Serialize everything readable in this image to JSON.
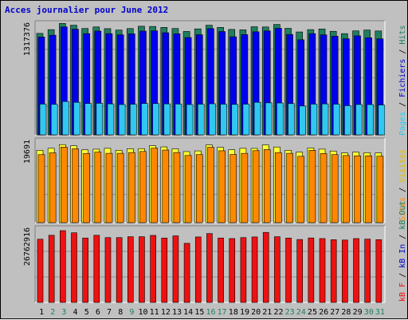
{
  "chart_data": {
    "type": "bar",
    "title": "Acces journalier pour June 2012",
    "colors": {
      "hits": "#1f7f5f",
      "files": "#0000ee",
      "pages": "#30c8f0",
      "visits": "#ffff33",
      "sites": "#ff8800",
      "kbytes": "#ee1111",
      "label_blue": "#0000cc",
      "label_green": "#1f7f5f",
      "label_red": "#ee1111",
      "label_orange": "#ff8800",
      "label_yellow": "#e0c000",
      "label_cyan": "#30c8f0",
      "label_black": "#000000"
    },
    "categories": [
      "1",
      "2",
      "3",
      "4",
      "5",
      "6",
      "7",
      "8",
      "9",
      "10",
      "11",
      "12",
      "13",
      "14",
      "15",
      "16",
      "17",
      "18",
      "19",
      "20",
      "21",
      "22",
      "23",
      "24",
      "25",
      "26",
      "27",
      "28",
      "29",
      "30",
      "31"
    ],
    "weekend_days": [
      "2",
      "3",
      "9",
      "16",
      "17",
      "23",
      "24",
      "30",
      "31"
    ],
    "top_panel": {
      "ymax_label": "1317376",
      "ymax": 1317376,
      "series": [
        {
          "name": "Hits",
          "color_key": "hits",
          "values": [
            1222700,
            1267900,
            1342600,
            1321500,
            1281500,
            1300300,
            1280100,
            1262900,
            1281000,
            1308800,
            1306200,
            1295100,
            1281500,
            1246300,
            1276900,
            1321500,
            1295100,
            1270500,
            1265300,
            1302900,
            1300300,
            1330700,
            1283700,
            1240000,
            1267900,
            1275900,
            1247900,
            1220000,
            1253000,
            1263000,
            1252000
          ]
        },
        {
          "name": "Fichiers",
          "color_key": "files",
          "values": [
            1178500,
            1200700,
            1300300,
            1273100,
            1219700,
            1250700,
            1219700,
            1205400,
            1217500,
            1250700,
            1254000,
            1230800,
            1217500,
            1173000,
            1206700,
            1280300,
            1245400,
            1182000,
            1207700,
            1241800,
            1253000,
            1283700,
            1209500,
            1145600,
            1219700,
            1205400,
            1188400,
            1158100,
            1193600,
            1170000,
            1157000
          ]
        },
        {
          "name": "Pages",
          "color_key": "pages",
          "values": [
            370900,
            367700,
            402400,
            392500,
            378200,
            380400,
            373700,
            365600,
            369400,
            378200,
            377100,
            373700,
            371700,
            365600,
            370000,
            374800,
            370000,
            367100,
            370000,
            392500,
            385800,
            384200,
            376800,
            348000,
            370900,
            373700,
            370000,
            351600,
            366000,
            365000,
            360000
          ]
        }
      ]
    },
    "middle_panel": {
      "ymax_label": "19691",
      "ymax": 19691,
      "series": [
        {
          "name": "Visites",
          "color_key": "visits",
          "values": [
            17850,
            18350,
            19250,
            18960,
            17970,
            18130,
            18340,
            17860,
            18220,
            18260,
            18980,
            18690,
            18210,
            17530,
            17700,
            19180,
            18560,
            17990,
            18340,
            18320,
            19180,
            18670,
            17860,
            17390,
            18430,
            18140,
            17670,
            17200,
            17410,
            17250,
            17200
          ]
        },
        {
          "name": "Sites",
          "color_key": "sites",
          "values": [
            16790,
            17230,
            18640,
            18220,
            17080,
            17400,
            17110,
            17110,
            17300,
            17560,
            18370,
            17910,
            17300,
            16570,
            16790,
            18600,
            17740,
            16830,
            17100,
            17760,
            18030,
            17280,
            17110,
            16370,
            17850,
            17050,
            16790,
            16560,
            16490,
            16490,
            16400
          ]
        }
      ]
    },
    "bottom_panel": {
      "ymax_label": "26762916",
      "ymax": 26762916,
      "series": [
        {
          "name": "KB F",
          "color_key": "kbytes",
          "values": [
            23560000,
            25030000,
            26760000,
            25960000,
            24010000,
            25030000,
            24170000,
            24170000,
            24500000,
            24500000,
            24990000,
            24010000,
            24810000,
            22030000,
            24410000,
            25680000,
            24010000,
            23810000,
            24170000,
            24410000,
            26110000,
            24500000,
            24000000,
            23460000,
            24030000,
            23810000,
            23370000,
            23250000,
            23810000,
            23600000,
            23400000
          ]
        }
      ]
    },
    "side_labels": {
      "top": [
        {
          "text": "Pages",
          "color_key": "label_cyan"
        },
        {
          "text": " / ",
          "color_key": "label_black"
        },
        {
          "text": "Fichiers",
          "color_key": "label_blue"
        },
        {
          "text": " / ",
          "color_key": "label_black"
        },
        {
          "text": "Hits",
          "color_key": "label_green"
        }
      ],
      "middle": [
        {
          "text": "Sites",
          "color_key": "label_orange"
        },
        {
          "text": " / ",
          "color_key": "label_black"
        },
        {
          "text": "Visites",
          "color_key": "label_yellow"
        }
      ],
      "bottom": [
        {
          "text": "kB F",
          "color_key": "label_red"
        },
        {
          "text": " / ",
          "color_key": "label_black"
        },
        {
          "text": "kB In",
          "color_key": "label_blue"
        },
        {
          "text": " / ",
          "color_key": "label_black"
        },
        {
          "text": "kB Out",
          "color_key": "label_green"
        }
      ]
    },
    "grid": true,
    "legend": "right"
  }
}
